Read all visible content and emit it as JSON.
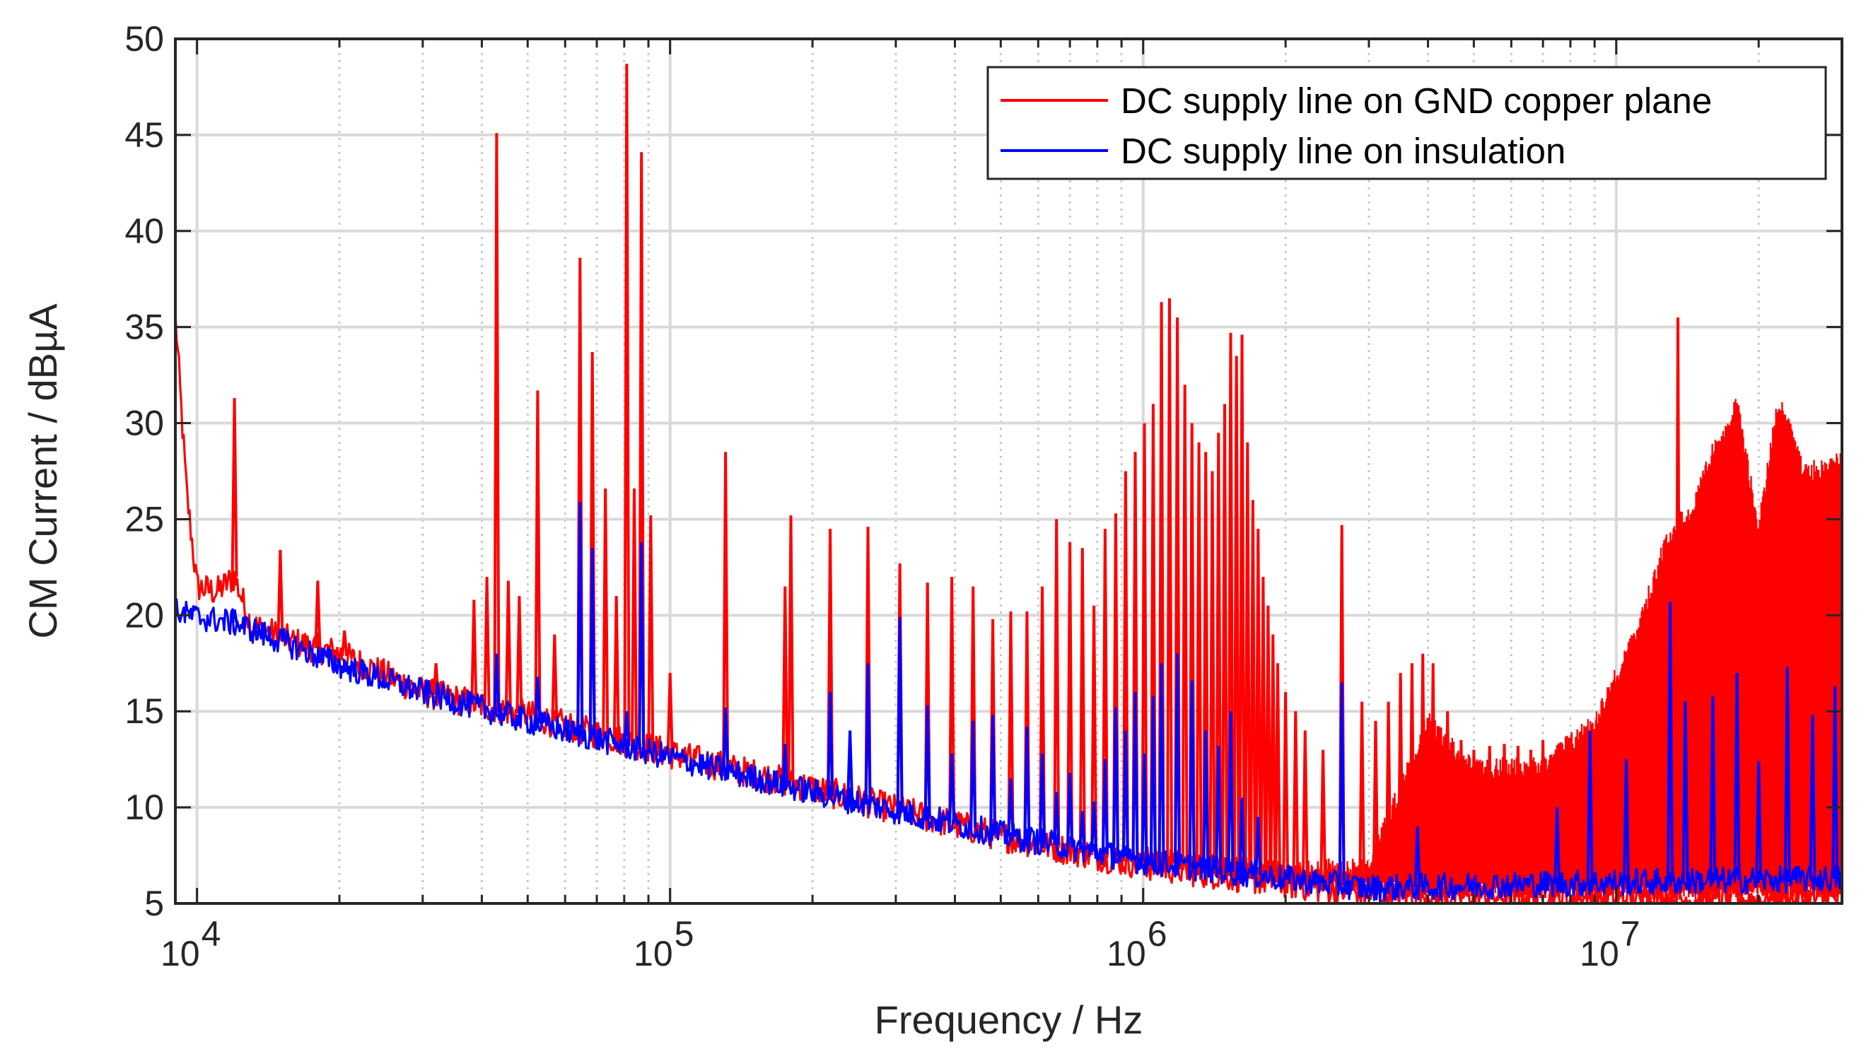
{
  "chart_data": {
    "type": "line",
    "xscale": "log",
    "xlabel": "Frequency / Hz",
    "ylabel": "CM Current / dBµA",
    "xlim": [
      9000,
      30000000
    ],
    "ylim": [
      5,
      50
    ],
    "yticks": [
      5,
      10,
      15,
      20,
      25,
      30,
      35,
      40,
      45,
      50
    ],
    "xticks": [
      {
        "value": 10000,
        "base": "10",
        "exp": "4"
      },
      {
        "value": 100000,
        "base": "10",
        "exp": "5"
      },
      {
        "value": 1000000,
        "base": "10",
        "exp": "6"
      },
      {
        "value": 10000000,
        "base": "10",
        "exp": "7"
      }
    ],
    "grid": true,
    "legend_position": "top-right",
    "series": [
      {
        "name": "DC supply line on GND copper plane",
        "color": "#ff0000",
        "baseline": [
          [
            9000,
            35.6
          ],
          [
            9500,
            26.5
          ],
          [
            10000,
            21.5
          ],
          [
            11000,
            21.2
          ],
          [
            12000,
            22
          ],
          [
            13000,
            19.5
          ],
          [
            16000,
            18.6
          ],
          [
            20000,
            18
          ],
          [
            30000,
            16
          ],
          [
            50000,
            14.8
          ],
          [
            100000,
            12.8
          ],
          [
            200000,
            11
          ],
          [
            500000,
            8.5
          ],
          [
            1000000,
            7
          ],
          [
            3000000,
            5.5
          ],
          [
            10000000,
            5.2
          ],
          [
            30000000,
            5.2
          ]
        ],
        "envelope": [
          [
            1000000,
            8
          ],
          [
            2000000,
            7.2
          ],
          [
            3000000,
            7.5
          ],
          [
            4000000,
            15
          ],
          [
            5000000,
            12.5
          ],
          [
            7000000,
            12.8
          ],
          [
            9000000,
            15
          ],
          [
            11000000,
            19.5
          ],
          [
            13000000,
            25
          ],
          [
            14500000,
            26
          ],
          [
            16000000,
            29
          ],
          [
            18000000,
            31.5
          ],
          [
            20000000,
            25
          ],
          [
            22000000,
            31.8
          ],
          [
            25000000,
            28
          ],
          [
            30000000,
            28.5
          ]
        ],
        "peaks": [
          {
            "f": 12000,
            "v": 31.3
          },
          {
            "f": 15000,
            "v": 23.4
          },
          {
            "f": 18000,
            "v": 21.8
          },
          {
            "f": 20500,
            "v": 19.2
          },
          {
            "f": 32000,
            "v": 17.5
          },
          {
            "f": 38500,
            "v": 20.8
          },
          {
            "f": 41000,
            "v": 22
          },
          {
            "f": 43000,
            "v": 45.1
          },
          {
            "f": 45500,
            "v": 21.8
          },
          {
            "f": 48000,
            "v": 21
          },
          {
            "f": 52500,
            "v": 31.7
          },
          {
            "f": 57000,
            "v": 19
          },
          {
            "f": 64500,
            "v": 38.6
          },
          {
            "f": 68500,
            "v": 33.7
          },
          {
            "f": 73000,
            "v": 26.6
          },
          {
            "f": 77000,
            "v": 21
          },
          {
            "f": 81000,
            "v": 48.7
          },
          {
            "f": 84000,
            "v": 26.6
          },
          {
            "f": 87000,
            "v": 44.1
          },
          {
            "f": 91000,
            "v": 25.2
          },
          {
            "f": 100000,
            "v": 17
          },
          {
            "f": 131000,
            "v": 28.5
          },
          {
            "f": 175000,
            "v": 21.5
          },
          {
            "f": 180000,
            "v": 25.2
          },
          {
            "f": 218000,
            "v": 24.5
          },
          {
            "f": 262000,
            "v": 24.6
          },
          {
            "f": 306000,
            "v": 22.7
          },
          {
            "f": 350000,
            "v": 21.7
          },
          {
            "f": 394000,
            "v": 22
          },
          {
            "f": 437000,
            "v": 21.5
          },
          {
            "f": 481000,
            "v": 19.8
          },
          {
            "f": 525000,
            "v": 20.2
          },
          {
            "f": 568000,
            "v": 20.2
          },
          {
            "f": 612000,
            "v": 21.5
          },
          {
            "f": 656000,
            "v": 25
          },
          {
            "f": 700000,
            "v": 23.8
          },
          {
            "f": 744000,
            "v": 23.5
          },
          {
            "f": 787000,
            "v": 20.5
          },
          {
            "f": 831000,
            "v": 24.5
          },
          {
            "f": 875000,
            "v": 25.3
          },
          {
            "f": 918000,
            "v": 27.5
          },
          {
            "f": 962000,
            "v": 28.5
          },
          {
            "f": 1006000,
            "v": 30
          },
          {
            "f": 1050000,
            "v": 31
          },
          {
            "f": 1093000,
            "v": 36.3
          },
          {
            "f": 1137000,
            "v": 36.5
          },
          {
            "f": 1181000,
            "v": 35.5
          },
          {
            "f": 1225000,
            "v": 32
          },
          {
            "f": 1268000,
            "v": 30
          },
          {
            "f": 1312000,
            "v": 29
          },
          {
            "f": 1356000,
            "v": 28.5
          },
          {
            "f": 1400000,
            "v": 27.5
          },
          {
            "f": 1443000,
            "v": 29.5
          },
          {
            "f": 1487000,
            "v": 31
          },
          {
            "f": 1531000,
            "v": 34.7
          },
          {
            "f": 1575000,
            "v": 33.5
          },
          {
            "f": 1618000,
            "v": 34.6
          },
          {
            "f": 1662000,
            "v": 29
          },
          {
            "f": 1706000,
            "v": 26
          },
          {
            "f": 1750000,
            "v": 24.5
          },
          {
            "f": 1793000,
            "v": 22
          },
          {
            "f": 1837000,
            "v": 20.5
          },
          {
            "f": 1881000,
            "v": 19
          },
          {
            "f": 1925000,
            "v": 17.5
          },
          {
            "f": 2000000,
            "v": 16
          },
          {
            "f": 2100000,
            "v": 15
          },
          {
            "f": 2200000,
            "v": 14
          },
          {
            "f": 2400000,
            "v": 13
          },
          {
            "f": 2630000,
            "v": 24.7
          },
          {
            "f": 2900000,
            "v": 15.5
          },
          {
            "f": 3100000,
            "v": 14.5
          },
          {
            "f": 3300000,
            "v": 15.5
          },
          {
            "f": 3500000,
            "v": 17
          },
          {
            "f": 3700000,
            "v": 17.5
          },
          {
            "f": 3900000,
            "v": 18
          },
          {
            "f": 4100000,
            "v": 17.5
          },
          {
            "f": 4400000,
            "v": 15
          },
          {
            "f": 4700000,
            "v": 13.5
          },
          {
            "f": 5000000,
            "v": 13
          },
          {
            "f": 5400000,
            "v": 13.2
          },
          {
            "f": 5800000,
            "v": 13.3
          },
          {
            "f": 6200000,
            "v": 13.2
          },
          {
            "f": 6600000,
            "v": 13
          },
          {
            "f": 7000000,
            "v": 13.5
          },
          {
            "f": 7500000,
            "v": 12.5
          },
          {
            "f": 8200000,
            "v": 13
          },
          {
            "f": 8800000,
            "v": 14
          },
          {
            "f": 13500000,
            "v": 35.5
          }
        ]
      },
      {
        "name": "DC supply line on insulation",
        "color": "#0000ff",
        "baseline": [
          [
            9000,
            20.2
          ],
          [
            10000,
            19.9
          ],
          [
            12000,
            19.6
          ],
          [
            16000,
            18.4
          ],
          [
            20000,
            17.4
          ],
          [
            30000,
            16
          ],
          [
            50000,
            14.5
          ],
          [
            100000,
            12.6
          ],
          [
            200000,
            10.8
          ],
          [
            500000,
            8.6
          ],
          [
            1000000,
            7.2
          ],
          [
            2000000,
            6.3
          ],
          [
            3000000,
            5.8
          ],
          [
            10000000,
            6.1
          ],
          [
            30000000,
            6.3
          ]
        ],
        "peaks": [
          {
            "f": 12000,
            "v": 20.3
          },
          {
            "f": 43000,
            "v": 18
          },
          {
            "f": 52500,
            "v": 16.8
          },
          {
            "f": 64500,
            "v": 25.9
          },
          {
            "f": 68500,
            "v": 23.5
          },
          {
            "f": 81000,
            "v": 15
          },
          {
            "f": 87000,
            "v": 23.8
          },
          {
            "f": 131000,
            "v": 15.2
          },
          {
            "f": 175000,
            "v": 13.3
          },
          {
            "f": 218000,
            "v": 16
          },
          {
            "f": 240000,
            "v": 14
          },
          {
            "f": 262000,
            "v": 17.5
          },
          {
            "f": 306000,
            "v": 19.9
          },
          {
            "f": 350000,
            "v": 15.3
          },
          {
            "f": 394000,
            "v": 12.8
          },
          {
            "f": 437000,
            "v": 14.5
          },
          {
            "f": 481000,
            "v": 14.8
          },
          {
            "f": 525000,
            "v": 11.5
          },
          {
            "f": 568000,
            "v": 14.2
          },
          {
            "f": 612000,
            "v": 12.8
          },
          {
            "f": 656000,
            "v": 10.8
          },
          {
            "f": 700000,
            "v": 11.8
          },
          {
            "f": 744000,
            "v": 9.8
          },
          {
            "f": 787000,
            "v": 10.3
          },
          {
            "f": 831000,
            "v": 12.5
          },
          {
            "f": 875000,
            "v": 15.2
          },
          {
            "f": 918000,
            "v": 14
          },
          {
            "f": 962000,
            "v": 16
          },
          {
            "f": 1006000,
            "v": 12.8
          },
          {
            "f": 1050000,
            "v": 15.8
          },
          {
            "f": 1093000,
            "v": 17.5
          },
          {
            "f": 1181000,
            "v": 18
          },
          {
            "f": 1268000,
            "v": 16.6
          },
          {
            "f": 1356000,
            "v": 14
          },
          {
            "f": 1443000,
            "v": 13.2
          },
          {
            "f": 1531000,
            "v": 15
          },
          {
            "f": 1618000,
            "v": 10.5
          },
          {
            "f": 1750000,
            "v": 9.5
          },
          {
            "f": 2630000,
            "v": 16.5
          },
          {
            "f": 3800000,
            "v": 9
          },
          {
            "f": 7500000,
            "v": 10
          },
          {
            "f": 8800000,
            "v": 14
          },
          {
            "f": 10500000,
            "v": 12.5
          },
          {
            "f": 13000000,
            "v": 20.7
          },
          {
            "f": 14000000,
            "v": 15.5
          },
          {
            "f": 16000000,
            "v": 15.8
          },
          {
            "f": 18000000,
            "v": 17
          },
          {
            "f": 20000000,
            "v": 12.4
          },
          {
            "f": 23000000,
            "v": 17.3
          },
          {
            "f": 26000000,
            "v": 14.8
          },
          {
            "f": 29000000,
            "v": 16.3
          }
        ]
      }
    ]
  }
}
